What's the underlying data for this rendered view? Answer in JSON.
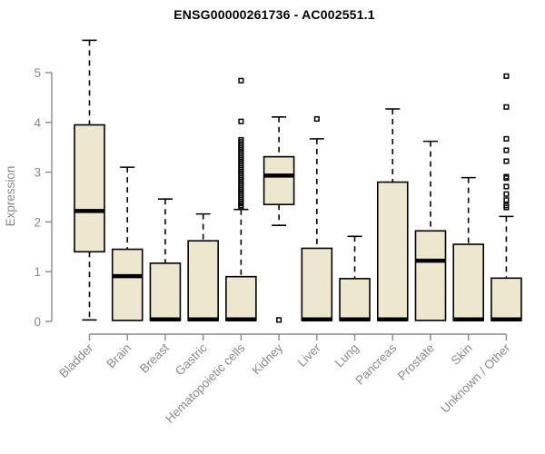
{
  "title": "ENSG00000261736 - AC002551.1",
  "chart_data": {
    "type": "boxplot",
    "title": "ENSG00000261736 - AC002551.1",
    "xlabel": "",
    "ylabel": "Expression",
    "ylim": [
      0,
      5
    ],
    "yticks": [
      0,
      1,
      2,
      3,
      4,
      5
    ],
    "grid": false,
    "legend": "none",
    "box_fill": "#EDE8CD",
    "box_stroke": "#000000",
    "axis_color": "#8A8A8A",
    "categories": [
      "Bladder",
      "Brain",
      "Breast",
      "Gastric",
      "Hematopoietic cells",
      "Kidney",
      "Liver",
      "Lung",
      "Pancreas",
      "Prostate",
      "Skin",
      "Unknown / Other"
    ],
    "series": [
      {
        "name": "Bladder",
        "whisker_low": 0.03,
        "q1": 1.4,
        "median": 2.22,
        "q3": 3.95,
        "whisker_high": 5.65,
        "outliers": []
      },
      {
        "name": "Brain",
        "whisker_low": 0.02,
        "q1": 0.02,
        "median": 0.91,
        "q3": 1.45,
        "whisker_high": 3.1,
        "outliers": []
      },
      {
        "name": "Breast",
        "whisker_low": 0.02,
        "q1": 0.02,
        "median": 0.04,
        "q3": 1.17,
        "whisker_high": 2.46,
        "outliers": []
      },
      {
        "name": "Gastric",
        "whisker_low": 0.02,
        "q1": 0.02,
        "median": 0.04,
        "q3": 1.62,
        "whisker_high": 2.16,
        "outliers": []
      },
      {
        "name": "Hematopoietic cells",
        "whisker_low": 0.02,
        "q1": 0.02,
        "median": 0.04,
        "q3": 0.9,
        "whisker_high": 2.25,
        "outliers": [
          4.84,
          4.02,
          3.65,
          3.61,
          3.57,
          3.53,
          3.49,
          3.45,
          3.41,
          3.37,
          3.33,
          3.29,
          3.25,
          3.21,
          3.17,
          3.13,
          3.09,
          3.05,
          3.01,
          2.97,
          2.93,
          2.89,
          2.85,
          2.81,
          2.77,
          2.73,
          2.69,
          2.65,
          2.61,
          2.57,
          2.53,
          2.49,
          2.45,
          2.41,
          2.37,
          2.33,
          2.3
        ]
      },
      {
        "name": "Kidney",
        "whisker_low": 1.93,
        "q1": 2.35,
        "median": 2.93,
        "q3": 3.31,
        "whisker_high": 4.11,
        "outliers": [
          0.03
        ]
      },
      {
        "name": "Liver",
        "whisker_low": 0.02,
        "q1": 0.02,
        "median": 0.04,
        "q3": 1.47,
        "whisker_high": 3.67,
        "outliers": [
          4.07
        ]
      },
      {
        "name": "Lung",
        "whisker_low": 0.02,
        "q1": 0.02,
        "median": 0.04,
        "q3": 0.86,
        "whisker_high": 1.71,
        "outliers": []
      },
      {
        "name": "Pancreas",
        "whisker_low": 0.02,
        "q1": 0.02,
        "median": 0.04,
        "q3": 2.8,
        "whisker_high": 4.27,
        "outliers": []
      },
      {
        "name": "Prostate",
        "whisker_low": 0.02,
        "q1": 0.02,
        "median": 1.22,
        "q3": 1.82,
        "whisker_high": 3.62,
        "outliers": []
      },
      {
        "name": "Skin",
        "whisker_low": 0.02,
        "q1": 0.02,
        "median": 0.04,
        "q3": 1.55,
        "whisker_high": 2.89,
        "outliers": []
      },
      {
        "name": "Unknown / Other",
        "whisker_low": 0.02,
        "q1": 0.02,
        "median": 0.04,
        "q3": 0.87,
        "whisker_high": 2.11,
        "outliers": [
          4.93,
          4.31,
          3.67,
          3.44,
          3.22,
          2.91,
          2.88,
          2.71,
          2.56,
          2.44,
          2.33,
          2.29
        ]
      }
    ]
  }
}
